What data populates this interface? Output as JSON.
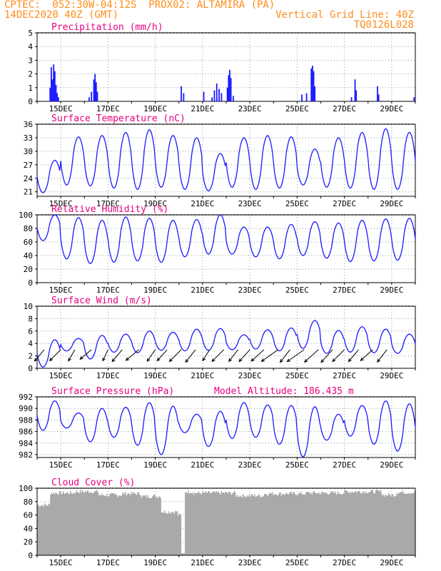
{
  "header": {
    "line1_left": "CPTEC:  052:30W-04:12S  PROX02: ALTAMIRA (PA)",
    "line2_left": "14DEC2020 40Z (GMT)",
    "line2_right": "Vertical Grid Line: 40Z",
    "line3_right": "TQ0126L028"
  },
  "colors": {
    "header": "#ff8c1a",
    "title": "#e6007e",
    "series": "#1a1aff",
    "cloud": "#a9a9a9",
    "wind_arrow": "#000000"
  },
  "x_ticks": [
    "15DEC",
    "17DEC",
    "19DEC",
    "21DEC",
    "23DEC",
    "25DEC",
    "27DEC",
    "29DEC"
  ],
  "chart_data": [
    {
      "type": "bar",
      "title": "Precipitation (mm/h)",
      "ylim": [
        0,
        5
      ],
      "yticks": [
        "0",
        "1",
        "2",
        "3",
        "4",
        "5"
      ],
      "grid": true,
      "events": [
        {
          "t": 0.55,
          "v": 1.0
        },
        {
          "t": 0.6,
          "v": 2.5
        },
        {
          "t": 0.65,
          "v": 1.6
        },
        {
          "t": 0.7,
          "v": 2.7
        },
        {
          "t": 0.75,
          "v": 2.2
        },
        {
          "t": 0.8,
          "v": 1.2
        },
        {
          "t": 0.85,
          "v": 0.6
        },
        {
          "t": 0.9,
          "v": 0.3
        },
        {
          "t": 2.2,
          "v": 0.3
        },
        {
          "t": 2.3,
          "v": 0.7
        },
        {
          "t": 2.4,
          "v": 1.6
        },
        {
          "t": 2.45,
          "v": 2.0
        },
        {
          "t": 2.5,
          "v": 1.4
        },
        {
          "t": 2.55,
          "v": 0.7
        },
        {
          "t": 6.1,
          "v": 1.1
        },
        {
          "t": 6.2,
          "v": 0.6
        },
        {
          "t": 7.05,
          "v": 0.7
        },
        {
          "t": 7.4,
          "v": 0.3
        },
        {
          "t": 7.5,
          "v": 0.8
        },
        {
          "t": 7.6,
          "v": 1.3
        },
        {
          "t": 7.7,
          "v": 0.9
        },
        {
          "t": 7.8,
          "v": 0.6
        },
        {
          "t": 8.05,
          "v": 1.0
        },
        {
          "t": 8.1,
          "v": 1.9
        },
        {
          "t": 8.15,
          "v": 2.3
        },
        {
          "t": 8.2,
          "v": 1.7
        },
        {
          "t": 8.3,
          "v": 0.4
        },
        {
          "t": 11.2,
          "v": 0.5
        },
        {
          "t": 11.4,
          "v": 0.6
        },
        {
          "t": 11.6,
          "v": 2.4
        },
        {
          "t": 11.65,
          "v": 2.6
        },
        {
          "t": 11.7,
          "v": 2.2
        },
        {
          "t": 11.75,
          "v": 1.1
        },
        {
          "t": 13.3,
          "v": 0.3
        },
        {
          "t": 13.45,
          "v": 1.6
        },
        {
          "t": 13.5,
          "v": 0.8
        },
        {
          "t": 14.4,
          "v": 1.1
        },
        {
          "t": 14.45,
          "v": 0.5
        },
        {
          "t": 15.95,
          "v": 0.3
        }
      ]
    },
    {
      "type": "line",
      "title": "Surface Temperature (nC)",
      "ylim": [
        20,
        36
      ],
      "yticks": [
        "21",
        "24",
        "27",
        "30",
        "33",
        "36"
      ],
      "grid": true,
      "daily": [
        {
          "hi": 28.0,
          "lo": 20.8
        },
        {
          "hi": 33.2,
          "lo": 22.5
        },
        {
          "hi": 33.5,
          "lo": 22.3
        },
        {
          "hi": 34.2,
          "lo": 21.8
        },
        {
          "hi": 34.8,
          "lo": 21.5
        },
        {
          "hi": 33.5,
          "lo": 22.0
        },
        {
          "hi": 33.0,
          "lo": 21.5
        },
        {
          "hi": 29.5,
          "lo": 21.2
        },
        {
          "hi": 33.0,
          "lo": 22.0
        },
        {
          "hi": 33.5,
          "lo": 21.5
        },
        {
          "hi": 33.2,
          "lo": 21.8
        },
        {
          "hi": 30.5,
          "lo": 22.5
        },
        {
          "hi": 33.0,
          "lo": 22.0
        },
        {
          "hi": 34.2,
          "lo": 21.8
        },
        {
          "hi": 35.0,
          "lo": 21.5
        },
        {
          "hi": 34.2,
          "lo": 21.5
        }
      ]
    },
    {
      "type": "line",
      "title": "Relative Humidity (%)",
      "ylim": [
        0,
        100
      ],
      "yticks": [
        "0",
        "20",
        "40",
        "60",
        "80",
        "100"
      ],
      "grid": true,
      "daily": [
        {
          "hi": 100,
          "lo": 62
        },
        {
          "hi": 96,
          "lo": 35
        },
        {
          "hi": 92,
          "lo": 28
        },
        {
          "hi": 97,
          "lo": 30
        },
        {
          "hi": 95,
          "lo": 32
        },
        {
          "hi": 92,
          "lo": 30
        },
        {
          "hi": 93,
          "lo": 38
        },
        {
          "hi": 100,
          "lo": 42
        },
        {
          "hi": 82,
          "lo": 42
        },
        {
          "hi": 82,
          "lo": 38
        },
        {
          "hi": 86,
          "lo": 35
        },
        {
          "hi": 90,
          "lo": 40
        },
        {
          "hi": 88,
          "lo": 36
        },
        {
          "hi": 92,
          "lo": 31
        },
        {
          "hi": 94,
          "lo": 32
        },
        {
          "hi": 95,
          "lo": 33
        }
      ]
    },
    {
      "type": "line",
      "title": "Surface Wind (m/s)",
      "ylim": [
        0,
        10
      ],
      "yticks": [
        "0",
        "2",
        "4",
        "6",
        "8",
        "10"
      ],
      "grid": true,
      "daily": [
        {
          "hi": 4.6,
          "lo": 0.2
        },
        {
          "hi": 4.8,
          "lo": 2.8
        },
        {
          "hi": 5.3,
          "lo": 1.5
        },
        {
          "hi": 5.5,
          "lo": 2.6
        },
        {
          "hi": 6.0,
          "lo": 2.5
        },
        {
          "hi": 5.8,
          "lo": 2.9
        },
        {
          "hi": 6.3,
          "lo": 2.8
        },
        {
          "hi": 6.4,
          "lo": 2.9
        },
        {
          "hi": 5.4,
          "lo": 3.0
        },
        {
          "hi": 6.2,
          "lo": 3.1
        },
        {
          "hi": 6.5,
          "lo": 2.8
        },
        {
          "hi": 7.7,
          "lo": 3.2
        },
        {
          "hi": 6.1,
          "lo": 2.4
        },
        {
          "hi": 6.7,
          "lo": 2.6
        },
        {
          "hi": 6.3,
          "lo": 2.5
        },
        {
          "hi": 5.5,
          "lo": 2.4
        }
      ],
      "arrows": [
        {
          "t": 0.3,
          "s": 4.0,
          "d": 230
        },
        {
          "t": 1.0,
          "s": 4.2,
          "d": 225
        },
        {
          "t": 1.6,
          "s": 3.5,
          "d": 240
        },
        {
          "t": 2.3,
          "s": 4.0,
          "d": 220
        },
        {
          "t": 3.0,
          "s": 3.3,
          "d": 245
        },
        {
          "t": 3.6,
          "s": 4.2,
          "d": 230
        },
        {
          "t": 4.3,
          "s": 4.5,
          "d": 220
        },
        {
          "t": 5.0,
          "s": 3.8,
          "d": 235
        },
        {
          "t": 5.5,
          "s": 4.0,
          "d": 228
        },
        {
          "t": 6.1,
          "s": 4.5,
          "d": 225
        },
        {
          "t": 6.7,
          "s": 4.3,
          "d": 232
        },
        {
          "t": 7.3,
          "s": 3.5,
          "d": 238
        },
        {
          "t": 7.9,
          "s": 4.5,
          "d": 225
        },
        {
          "t": 8.5,
          "s": 4.0,
          "d": 232
        },
        {
          "t": 9.0,
          "s": 4.3,
          "d": 228
        },
        {
          "t": 9.6,
          "s": 4.6,
          "d": 222
        },
        {
          "t": 10.2,
          "s": 5.5,
          "d": 215
        },
        {
          "t": 10.7,
          "s": 4.3,
          "d": 232
        },
        {
          "t": 11.3,
          "s": 5.6,
          "d": 215
        },
        {
          "t": 11.9,
          "s": 5.0,
          "d": 222
        },
        {
          "t": 12.5,
          "s": 4.6,
          "d": 228
        },
        {
          "t": 13.0,
          "s": 4.5,
          "d": 225
        },
        {
          "t": 13.6,
          "s": 4.2,
          "d": 230
        },
        {
          "t": 14.2,
          "s": 4.4,
          "d": 222
        },
        {
          "t": 14.8,
          "s": 4.2,
          "d": 232
        }
      ]
    },
    {
      "type": "line",
      "title": "Surface Pressure (hPa)",
      "annotation": "Model Altitude: 186.435 m",
      "ylim": [
        981.5,
        992
      ],
      "yticks": [
        "982",
        "984",
        "986",
        "988",
        "990",
        "992"
      ],
      "grid": true,
      "daily": [
        {
          "hi": 991.3,
          "lo": 986.2
        },
        {
          "hi": 989.2,
          "lo": 986.6
        },
        {
          "hi": 990.0,
          "lo": 984.2
        },
        {
          "hi": 990.2,
          "lo": 985.0
        },
        {
          "hi": 991.0,
          "lo": 983.6
        },
        {
          "hi": 990.4,
          "lo": 982.0
        },
        {
          "hi": 989.0,
          "lo": 985.8
        },
        {
          "hi": 989.5,
          "lo": 983.4
        },
        {
          "hi": 991.0,
          "lo": 984.8
        },
        {
          "hi": 990.6,
          "lo": 985.0
        },
        {
          "hi": 990.5,
          "lo": 983.8
        },
        {
          "hi": 990.3,
          "lo": 981.6
        },
        {
          "hi": 989.0,
          "lo": 984.5
        },
        {
          "hi": 990.5,
          "lo": 985.2
        },
        {
          "hi": 991.3,
          "lo": 983.8
        },
        {
          "hi": 990.8,
          "lo": 982.6
        }
      ]
    },
    {
      "type": "area",
      "title": "Cloud Cover (%)",
      "ylim": [
        0,
        100
      ],
      "yticks": [
        "0",
        "20",
        "40",
        "60",
        "80",
        "100"
      ],
      "grid": true,
      "segments": [
        {
          "from": 0.0,
          "to": 0.55,
          "v": 75
        },
        {
          "from": 0.55,
          "to": 1.6,
          "v": 93
        },
        {
          "from": 1.6,
          "to": 2.6,
          "v": 95
        },
        {
          "from": 2.6,
          "to": 3.6,
          "v": 90
        },
        {
          "from": 3.6,
          "to": 4.4,
          "v": 92
        },
        {
          "from": 4.4,
          "to": 5.25,
          "v": 88
        },
        {
          "from": 5.25,
          "to": 5.95,
          "v": 65
        },
        {
          "from": 5.95,
          "to": 6.1,
          "v": 60
        },
        {
          "from": 6.1,
          "to": 6.25,
          "v": 3
        },
        {
          "from": 6.25,
          "to": 6.6,
          "v": 95
        },
        {
          "from": 6.6,
          "to": 8.4,
          "v": 93
        },
        {
          "from": 8.4,
          "to": 9.6,
          "v": 89
        },
        {
          "from": 9.6,
          "to": 11.4,
          "v": 92
        },
        {
          "from": 11.4,
          "to": 13.0,
          "v": 93
        },
        {
          "from": 13.0,
          "to": 14.6,
          "v": 95
        },
        {
          "from": 14.6,
          "to": 15.2,
          "v": 90
        },
        {
          "from": 15.2,
          "to": 16.0,
          "v": 94
        }
      ]
    }
  ]
}
